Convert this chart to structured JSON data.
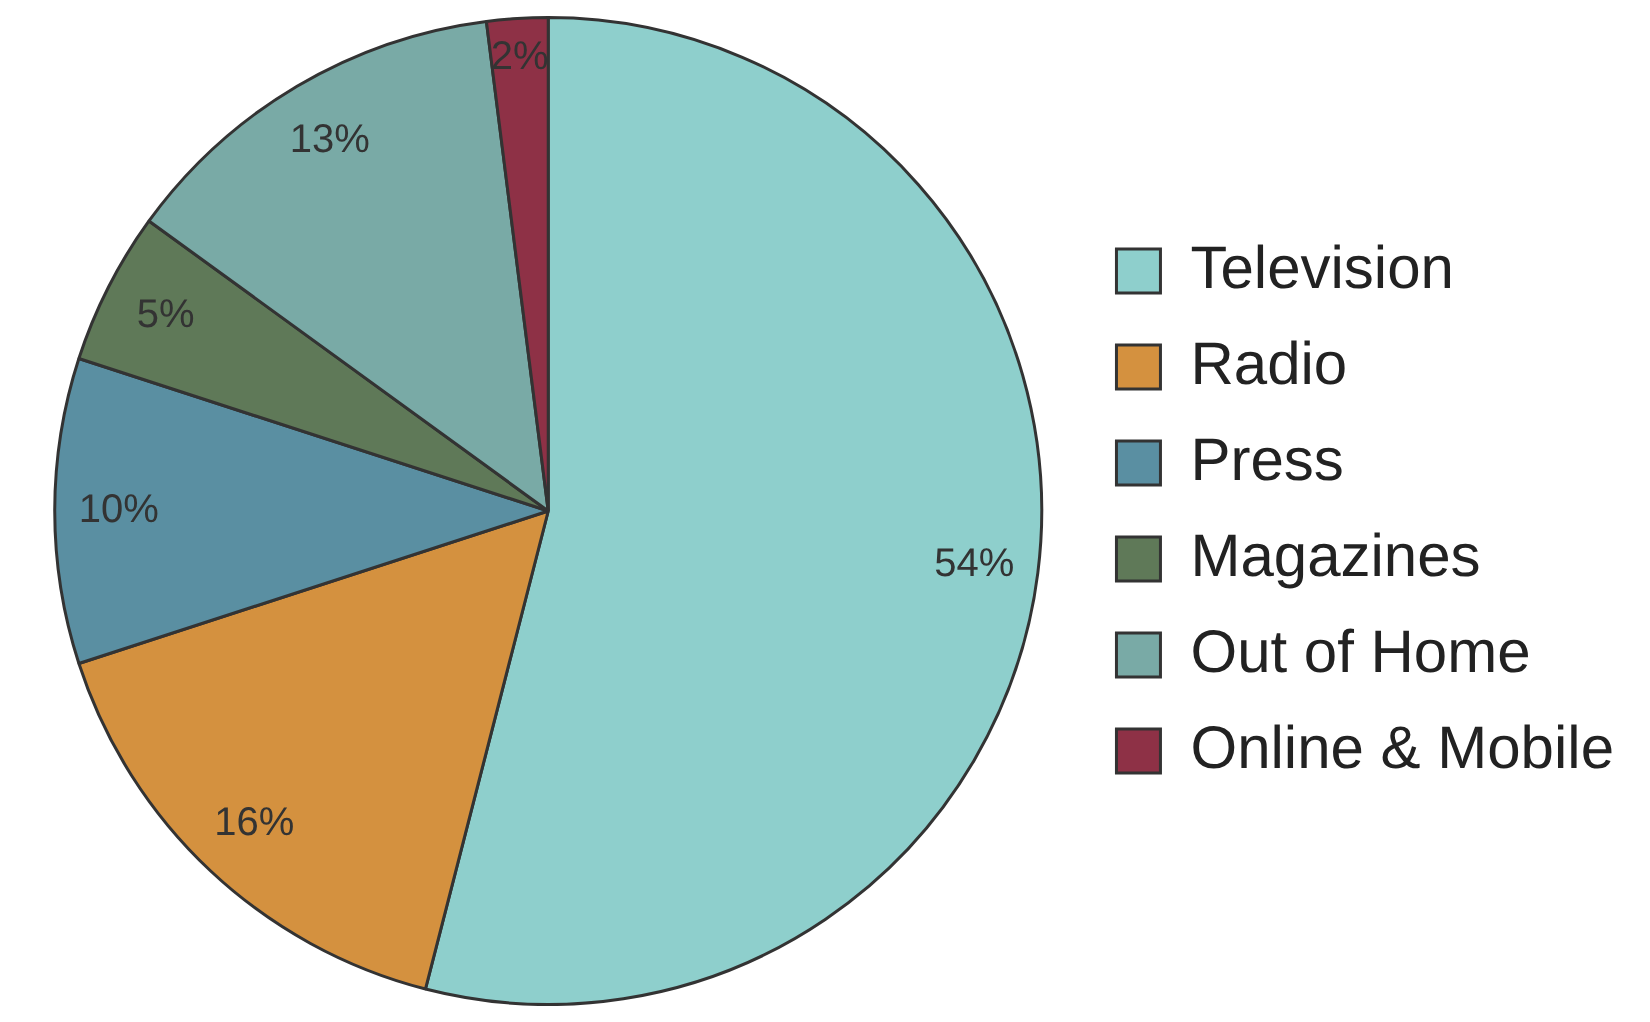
{
  "chart_data": {
    "type": "pie",
    "categories": [
      "Television",
      "Radio",
      "Press",
      "Magazines",
      "Out of Home",
      "Online & Mobile"
    ],
    "values": [
      54,
      16,
      10,
      5,
      13,
      2
    ],
    "colors": [
      "#8ecfcc",
      "#d4913f",
      "#5a8fa2",
      "#5f7958",
      "#79aaa6",
      "#8e3146"
    ],
    "value_labels": [
      "54%",
      "16%",
      "10%",
      "5%",
      "13%",
      "2%"
    ],
    "legend": "right"
  }
}
